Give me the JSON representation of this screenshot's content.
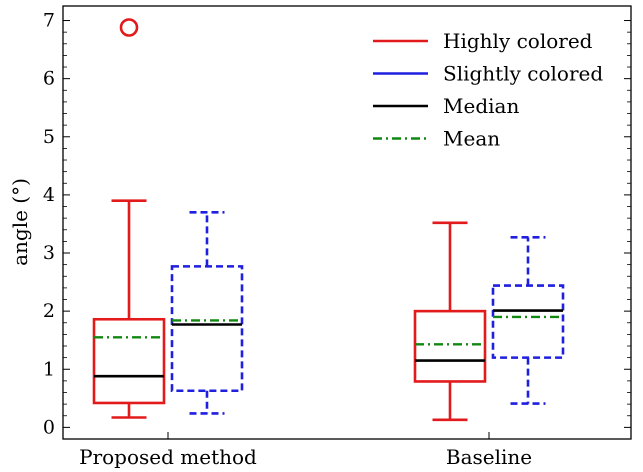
{
  "chart_data": {
    "type": "box",
    "ylabel": "angle (°)",
    "ylim": [
      -0.2,
      7.25
    ],
    "yticks": [
      0,
      1,
      2,
      3,
      4,
      5,
      6,
      7
    ],
    "grid": false,
    "legend_position": "top-right",
    "categories": [
      "Proposed method",
      "Baseline"
    ],
    "series": [
      {
        "name": "Highly colored",
        "color": "#e31a1c",
        "line_style": "solid",
        "boxes": [
          {
            "category": "Proposed method",
            "whisker_low": 0.17,
            "q1": 0.42,
            "median": 0.88,
            "q3": 1.86,
            "whisker_high": 3.9,
            "mean": 1.55,
            "outliers": [
              6.88
            ]
          },
          {
            "category": "Baseline",
            "whisker_low": 0.13,
            "q1": 0.79,
            "median": 1.15,
            "q3": 2.0,
            "whisker_high": 3.52,
            "mean": 1.43,
            "outliers": []
          }
        ]
      },
      {
        "name": "Slightly colored",
        "color": "#1f1fe0",
        "line_style": "dashed",
        "boxes": [
          {
            "category": "Proposed method",
            "whisker_low": 0.24,
            "q1": 0.63,
            "median": 1.77,
            "q3": 2.77,
            "whisker_high": 3.7,
            "mean": 1.84,
            "outliers": []
          },
          {
            "category": "Baseline",
            "whisker_low": 0.41,
            "q1": 1.2,
            "median": 2.01,
            "q3": 2.44,
            "whisker_high": 3.27,
            "mean": 1.9,
            "outliers": []
          }
        ]
      }
    ],
    "legend": [
      {
        "label": "Highly colored",
        "color": "#e31a1c",
        "style": "solid"
      },
      {
        "label": "Slightly colored",
        "color": "#1f1fe0",
        "style": "solid"
      },
      {
        "label": "Median",
        "color": "#000000",
        "style": "solid"
      },
      {
        "label": "Mean",
        "color": "#118811",
        "style": "dashdot"
      }
    ],
    "median_color": "#000000",
    "mean_color": "#118811"
  }
}
